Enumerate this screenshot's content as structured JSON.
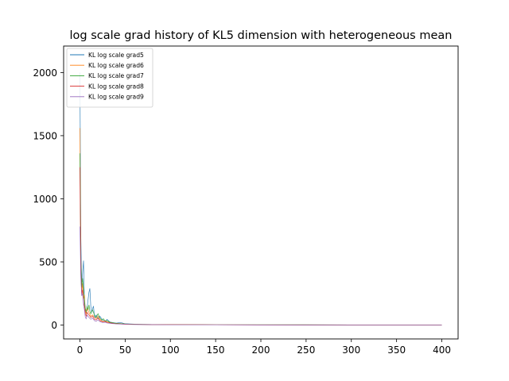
{
  "chart_data": {
    "type": "line",
    "title": "log scale grad history of KL5 dimension with heterogeneous mean",
    "xlabel": "",
    "ylabel": "",
    "xlim": [
      -18,
      418
    ],
    "ylim": [
      -110,
      2210
    ],
    "xticks": [
      0,
      50,
      100,
      150,
      200,
      250,
      300,
      350,
      400
    ],
    "yticks": [
      0,
      500,
      1000,
      1500,
      2000
    ],
    "grid": false,
    "legend_position": "top-left",
    "series": [
      {
        "name": "KL log scale grad5",
        "color": "#1f77b4",
        "points": [
          [
            0,
            2000
          ],
          [
            1,
            700
          ],
          [
            2,
            310
          ],
          [
            3,
            420
          ],
          [
            4,
            510
          ],
          [
            5,
            180
          ],
          [
            6,
            120
          ],
          [
            7,
            90
          ],
          [
            8,
            140
          ],
          [
            9,
            200
          ],
          [
            10,
            260
          ],
          [
            11,
            290
          ],
          [
            12,
            150
          ],
          [
            13,
            100
          ],
          [
            14,
            130
          ],
          [
            15,
            150
          ],
          [
            16,
            70
          ],
          [
            17,
            60
          ],
          [
            18,
            80
          ],
          [
            20,
            50
          ],
          [
            22,
            70
          ],
          [
            25,
            40
          ],
          [
            28,
            30
          ],
          [
            30,
            45
          ],
          [
            33,
            25
          ],
          [
            36,
            20
          ],
          [
            40,
            15
          ],
          [
            45,
            20
          ],
          [
            50,
            10
          ],
          [
            60,
            7
          ],
          [
            70,
            5
          ],
          [
            80,
            4
          ],
          [
            100,
            3
          ],
          [
            150,
            2
          ],
          [
            200,
            2
          ],
          [
            300,
            1
          ],
          [
            400,
            1
          ]
        ]
      },
      {
        "name": "KL log scale grad6",
        "color": "#ff7f0e",
        "points": [
          [
            0,
            1560
          ],
          [
            1,
            550
          ],
          [
            2,
            260
          ],
          [
            3,
            330
          ],
          [
            4,
            210
          ],
          [
            5,
            240
          ],
          [
            6,
            110
          ],
          [
            7,
            90
          ],
          [
            8,
            130
          ],
          [
            10,
            100
          ],
          [
            12,
            70
          ],
          [
            14,
            80
          ],
          [
            16,
            60
          ],
          [
            18,
            50
          ],
          [
            20,
            70
          ],
          [
            22,
            45
          ],
          [
            25,
            30
          ],
          [
            28,
            35
          ],
          [
            30,
            25
          ],
          [
            35,
            18
          ],
          [
            40,
            12
          ],
          [
            45,
            10
          ],
          [
            50,
            8
          ],
          [
            60,
            6
          ],
          [
            80,
            4
          ],
          [
            100,
            3
          ],
          [
            150,
            2
          ],
          [
            200,
            2
          ],
          [
            300,
            1
          ],
          [
            400,
            1
          ]
        ]
      },
      {
        "name": "KL log scale grad7",
        "color": "#2ca02c",
        "points": [
          [
            0,
            1360
          ],
          [
            1,
            500
          ],
          [
            2,
            300
          ],
          [
            3,
            370
          ],
          [
            4,
            280
          ],
          [
            5,
            200
          ],
          [
            6,
            130
          ],
          [
            7,
            110
          ],
          [
            8,
            150
          ],
          [
            9,
            120
          ],
          [
            10,
            160
          ],
          [
            11,
            110
          ],
          [
            12,
            90
          ],
          [
            14,
            120
          ],
          [
            16,
            80
          ],
          [
            18,
            60
          ],
          [
            20,
            90
          ],
          [
            22,
            55
          ],
          [
            24,
            40
          ],
          [
            26,
            50
          ],
          [
            28,
            30
          ],
          [
            30,
            35
          ],
          [
            33,
            22
          ],
          [
            36,
            18
          ],
          [
            40,
            14
          ],
          [
            50,
            9
          ],
          [
            60,
            6
          ],
          [
            80,
            4
          ],
          [
            100,
            3
          ],
          [
            150,
            2
          ],
          [
            200,
            2
          ],
          [
            300,
            1
          ],
          [
            400,
            1
          ]
        ]
      },
      {
        "name": "KL log scale grad8",
        "color": "#d62728",
        "points": [
          [
            0,
            1250
          ],
          [
            1,
            420
          ],
          [
            2,
            240
          ],
          [
            3,
            280
          ],
          [
            4,
            180
          ],
          [
            5,
            150
          ],
          [
            6,
            90
          ],
          [
            7,
            70
          ],
          [
            8,
            100
          ],
          [
            10,
            80
          ],
          [
            12,
            60
          ],
          [
            14,
            70
          ],
          [
            16,
            45
          ],
          [
            18,
            40
          ],
          [
            20,
            55
          ],
          [
            22,
            35
          ],
          [
            25,
            25
          ],
          [
            28,
            28
          ],
          [
            30,
            20
          ],
          [
            35,
            15
          ],
          [
            40,
            10
          ],
          [
            50,
            7
          ],
          [
            60,
            5
          ],
          [
            80,
            3
          ],
          [
            100,
            3
          ],
          [
            150,
            2
          ],
          [
            200,
            1
          ],
          [
            300,
            1
          ],
          [
            400,
            1
          ]
        ]
      },
      {
        "name": "KL log scale grad9",
        "color": "#9467bd",
        "points": [
          [
            0,
            780
          ],
          [
            1,
            380
          ],
          [
            2,
            230
          ],
          [
            3,
            250
          ],
          [
            4,
            160
          ],
          [
            5,
            120
          ],
          [
            6,
            60
          ],
          [
            7,
            50
          ],
          [
            8,
            80
          ],
          [
            10,
            60
          ],
          [
            12,
            45
          ],
          [
            14,
            55
          ],
          [
            16,
            35
          ],
          [
            18,
            30
          ],
          [
            20,
            40
          ],
          [
            22,
            28
          ],
          [
            25,
            20
          ],
          [
            28,
            22
          ],
          [
            30,
            16
          ],
          [
            35,
            12
          ],
          [
            40,
            9
          ],
          [
            50,
            6
          ],
          [
            60,
            4
          ],
          [
            80,
            3
          ],
          [
            100,
            2
          ],
          [
            150,
            2
          ],
          [
            200,
            1
          ],
          [
            300,
            1
          ],
          [
            400,
            1
          ]
        ]
      }
    ]
  }
}
